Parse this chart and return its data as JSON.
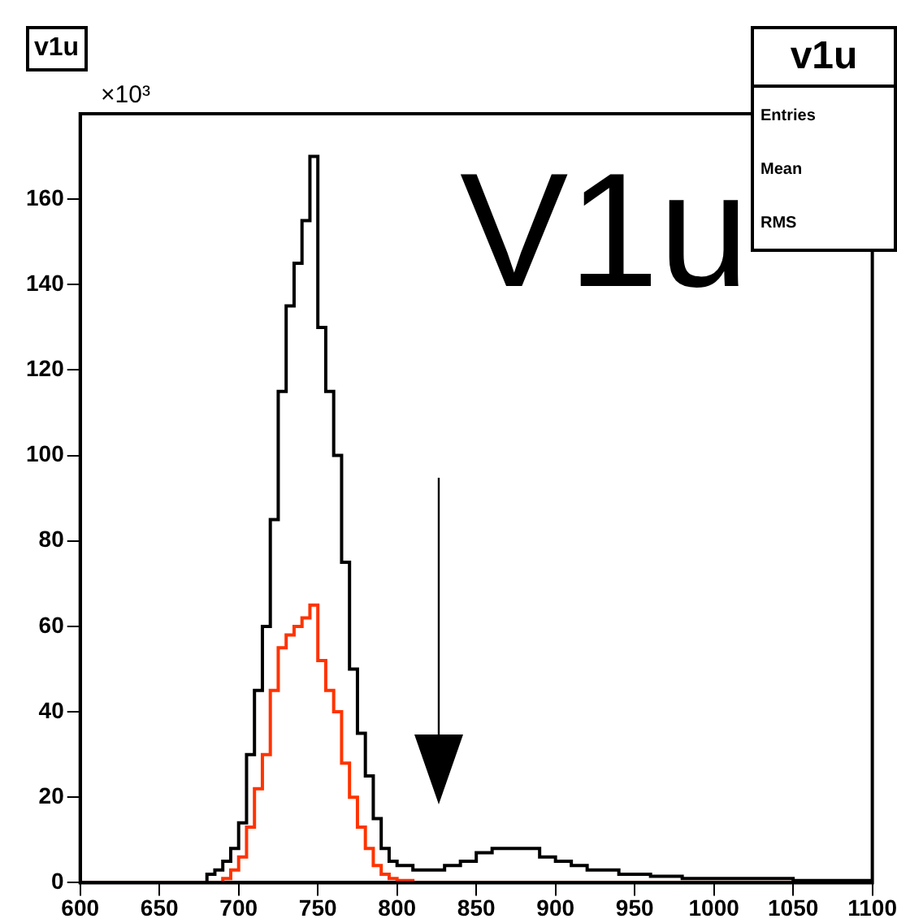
{
  "chart_data": {
    "type": "histogram",
    "title": "v1u",
    "ylabel": "×10³",
    "annotations": [
      "V1u",
      "v1u",
      "Entries",
      "Mean",
      "RMS"
    ],
    "bins": [
      600,
      610,
      620,
      630,
      640,
      650,
      660,
      670,
      680,
      685,
      690,
      695,
      700,
      705,
      710,
      715,
      720,
      725,
      730,
      735,
      740,
      745,
      750,
      755,
      760,
      765,
      770,
      775,
      780,
      785,
      790,
      795,
      800,
      810,
      820,
      830,
      840,
      850,
      860,
      870,
      880,
      890,
      900,
      910,
      920,
      930,
      940,
      950,
      960,
      970,
      980,
      990,
      1000,
      1010,
      1020,
      1030,
      1040,
      1050,
      1060,
      1070,
      1080,
      1090,
      1100
    ],
    "series": [
      {
        "color": "#000000",
        "values": [
          0,
          0,
          0,
          0,
          0,
          0,
          0,
          0,
          2,
          3,
          5,
          8,
          14,
          30,
          45,
          60,
          85,
          115,
          135,
          145,
          155,
          170,
          130,
          115,
          100,
          75,
          50,
          35,
          25,
          15,
          8,
          5,
          4,
          3,
          3,
          4,
          5,
          7,
          8,
          8,
          8,
          6,
          5,
          4,
          3,
          3,
          2,
          2,
          1.5,
          1.5,
          1,
          1,
          1,
          1,
          1,
          1,
          1,
          0.5,
          0.5,
          0.5,
          0.5,
          0.5
        ]
      },
      {
        "color": "#ff3300",
        "values": [
          0,
          0,
          0,
          0,
          0,
          0,
          0,
          0,
          0,
          0,
          1,
          3,
          6,
          13,
          22,
          30,
          45,
          55,
          58,
          60,
          62,
          65,
          52,
          45,
          40,
          28,
          20,
          13,
          8,
          4,
          2,
          1,
          0.5,
          0,
          0,
          0,
          0,
          0,
          0,
          0,
          0,
          0,
          0,
          0,
          0,
          0,
          0,
          0,
          0,
          0,
          0,
          0,
          0,
          0,
          0,
          0,
          0,
          0,
          0,
          0,
          0,
          0
        ]
      }
    ],
    "xlim": [
      600,
      1100
    ],
    "xticks": [
      600,
      650,
      700,
      750,
      800,
      850,
      900,
      950,
      1000,
      1050,
      1100
    ],
    "ylim": [
      0,
      180
    ],
    "yticks": [
      0,
      20,
      40,
      60,
      80,
      100,
      120,
      140,
      160
    ],
    "grid": false,
    "legend": false
  }
}
